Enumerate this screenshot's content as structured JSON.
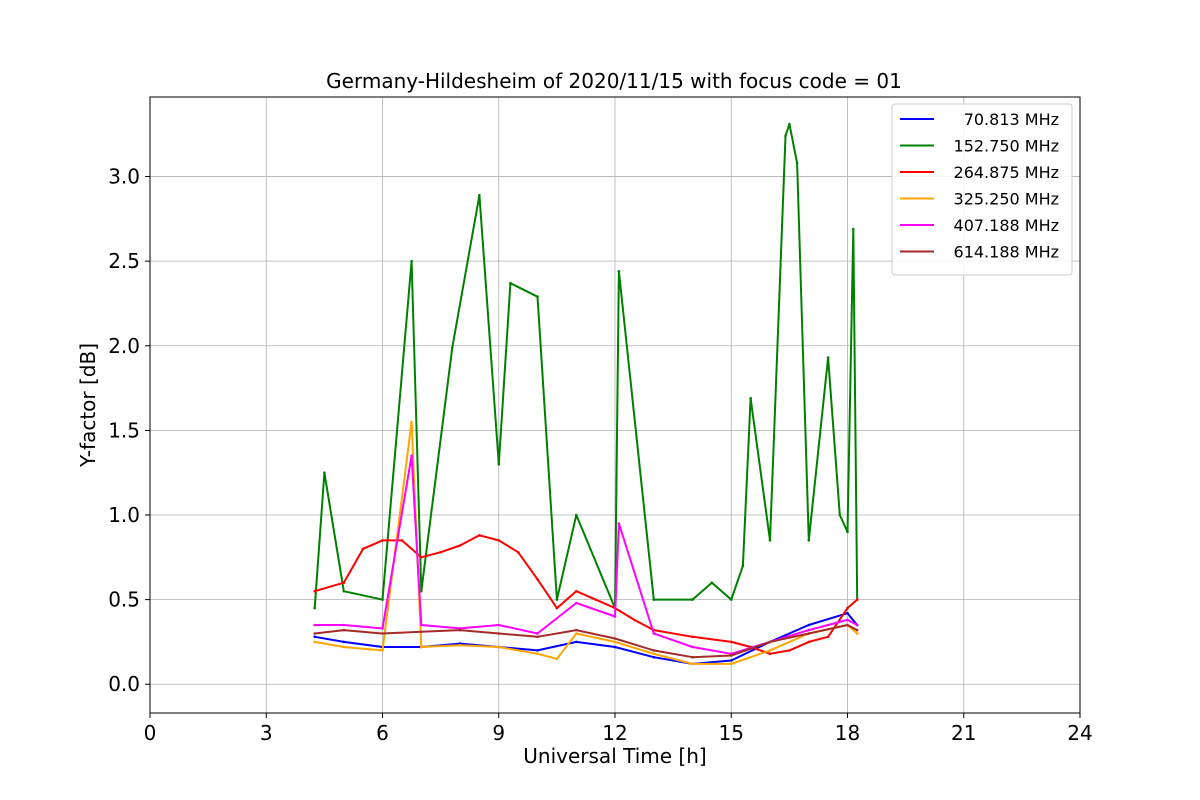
{
  "chart_data": {
    "type": "line",
    "title": "Germany-Hildesheim of 2020/11/15 with focus code = 01",
    "xlabel": "Universal Time [h]",
    "ylabel": "Y-factor [dB]",
    "xlim": [
      0,
      24
    ],
    "ylim": [
      -0.17,
      3.47
    ],
    "xticks": [
      0,
      3,
      6,
      9,
      12,
      15,
      18,
      21,
      24
    ],
    "xtick_labels": [
      "0",
      "3",
      "6",
      "9",
      "12",
      "15",
      "18",
      "21",
      "24"
    ],
    "yticks": [
      0.0,
      0.5,
      1.0,
      1.5,
      2.0,
      2.5,
      3.0
    ],
    "ytick_labels": [
      "0.0",
      "0.5",
      "1.0",
      "1.5",
      "2.0",
      "2.5",
      "3.0"
    ],
    "grid": true,
    "legend_position": "top-right",
    "series": [
      {
        "name": "70.813 MHz",
        "color": "#0000ff",
        "x": [
          4.25,
          5,
          6,
          7,
          8,
          9,
          10,
          11,
          12,
          13,
          14,
          15,
          16,
          17,
          18,
          18.25
        ],
        "y": [
          0.28,
          0.25,
          0.22,
          0.22,
          0.24,
          0.22,
          0.2,
          0.25,
          0.22,
          0.16,
          0.12,
          0.14,
          0.25,
          0.35,
          0.42,
          0.35
        ]
      },
      {
        "name": "152.750 MHz",
        "color": "#008000",
        "x": [
          4.25,
          4.5,
          5,
          6,
          6.75,
          7,
          7.8,
          8.5,
          9,
          9.3,
          10,
          10.5,
          11,
          12,
          12.1,
          13,
          14,
          14.5,
          15,
          15.3,
          15.5,
          16,
          16.4,
          16.5,
          16.7,
          17,
          17.5,
          17.8,
          18,
          18.15,
          18.25
        ],
        "y": [
          0.45,
          1.25,
          0.55,
          0.5,
          2.5,
          0.55,
          1.99,
          2.89,
          1.3,
          2.37,
          2.29,
          0.5,
          1.0,
          0.45,
          2.44,
          0.5,
          0.5,
          0.6,
          0.5,
          0.7,
          1.69,
          0.85,
          3.24,
          3.31,
          3.08,
          0.85,
          1.93,
          1.0,
          0.9,
          2.69,
          0.5
        ]
      },
      {
        "name": "264.875 MHz",
        "color": "#ff0000",
        "x": [
          4.25,
          5,
          5.5,
          6,
          6.5,
          7,
          7.5,
          8,
          8.5,
          9,
          9.5,
          10,
          10.5,
          11,
          11.5,
          12,
          12.5,
          13,
          14,
          15,
          15.5,
          16,
          16.5,
          17,
          17.5,
          18,
          18.25
        ],
        "y": [
          0.55,
          0.6,
          0.8,
          0.85,
          0.85,
          0.75,
          0.78,
          0.82,
          0.88,
          0.85,
          0.78,
          0.62,
          0.45,
          0.55,
          0.5,
          0.45,
          0.38,
          0.32,
          0.28,
          0.25,
          0.22,
          0.18,
          0.2,
          0.25,
          0.28,
          0.45,
          0.5
        ]
      },
      {
        "name": "325.250 MHz",
        "color": "#ffa500",
        "x": [
          4.25,
          5,
          6,
          6.75,
          7,
          8,
          9,
          10,
          10.5,
          11,
          12,
          13,
          14,
          15,
          16,
          17,
          18,
          18.25
        ],
        "y": [
          0.25,
          0.22,
          0.2,
          1.55,
          0.22,
          0.23,
          0.22,
          0.18,
          0.15,
          0.3,
          0.25,
          0.18,
          0.12,
          0.12,
          0.2,
          0.3,
          0.35,
          0.3
        ]
      },
      {
        "name": "407.188 MHz",
        "color": "#ff00ff",
        "x": [
          4.25,
          5,
          6,
          6.75,
          7,
          8,
          9,
          10,
          11,
          12,
          12.1,
          13,
          14,
          15,
          16,
          17,
          18,
          18.25
        ],
        "y": [
          0.35,
          0.35,
          0.33,
          1.35,
          0.35,
          0.33,
          0.35,
          0.3,
          0.48,
          0.4,
          0.95,
          0.3,
          0.22,
          0.18,
          0.25,
          0.32,
          0.38,
          0.35
        ]
      },
      {
        "name": "614.188 MHz",
        "color": "#a52a2a",
        "x": [
          4.25,
          5,
          6,
          7,
          8,
          9,
          10,
          11,
          12,
          13,
          14,
          15,
          16,
          17,
          18,
          18.25
        ],
        "y": [
          0.3,
          0.32,
          0.3,
          0.31,
          0.32,
          0.3,
          0.28,
          0.32,
          0.27,
          0.2,
          0.16,
          0.17,
          0.25,
          0.3,
          0.35,
          0.32
        ]
      }
    ]
  }
}
